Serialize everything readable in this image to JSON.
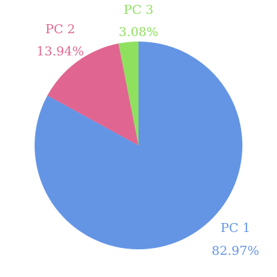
{
  "chart_data": {
    "type": "pie",
    "title": "",
    "slices": [
      {
        "name": "PC 1",
        "value": 82.97,
        "label": "82.97%",
        "color": "#6495e5"
      },
      {
        "name": "PC 2",
        "value": 13.94,
        "label": "13.94%",
        "color": "#e06590"
      },
      {
        "name": "PC 3",
        "value": 3.08,
        "label": "3.08%",
        "color": "#90e060"
      }
    ]
  }
}
